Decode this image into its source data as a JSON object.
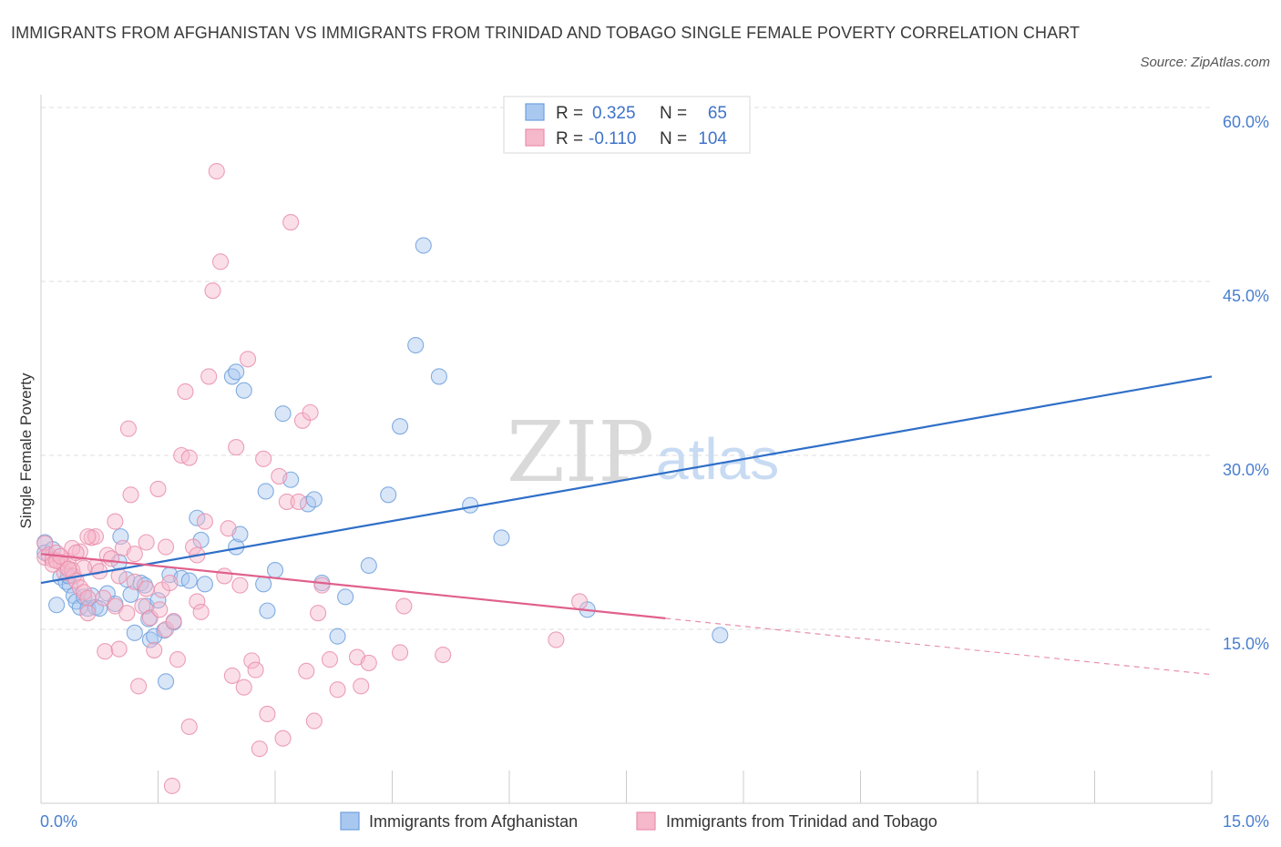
{
  "title": "IMMIGRANTS FROM AFGHANISTAN VS IMMIGRANTS FROM TRINIDAD AND TOBAGO SINGLE FEMALE POVERTY CORRELATION CHART",
  "source": "Source: ZipAtlas.com",
  "watermark": {
    "zip": "ZIP",
    "atlas": "atlas"
  },
  "colors": {
    "blue_fill": "#a9c8f0",
    "blue_stroke": "#6f9fdc",
    "blue_line": "#2f6fc8",
    "pink_fill": "#f6b8cb",
    "pink_stroke": "#e98fac",
    "pink_line": "#e0608c",
    "axis_text": "#4a7fd0",
    "grid": "#dedede"
  },
  "legend": {
    "r_label": "R =",
    "n_label": "N =",
    "rows": [
      {
        "r": "0.325",
        "n": "65"
      },
      {
        "r": "-0.110",
        "n": "104"
      }
    ]
  },
  "chart_data": {
    "type": "scatter",
    "xlabel": "",
    "ylabel": "Single Female Poverty",
    "xlim": [
      0,
      15
    ],
    "ylim": [
      0,
      60
    ],
    "x_tick_labels": [
      "0.0%",
      "15.0%"
    ],
    "y_ticks": [
      15,
      30,
      45,
      60
    ],
    "y_tick_labels": [
      "15.0%",
      "30.0%",
      "45.0%",
      "60.0%"
    ],
    "grid": true,
    "legend_placement": "top-center",
    "series": [
      {
        "name": "Immigrants from Afghanistan",
        "color": "#a9c8f0",
        "trend": {
          "x": [
            0,
            15
          ],
          "y": [
            19.0,
            36.8
          ],
          "dashed_from": null
        },
        "points": [
          [
            0.05,
            22.5
          ],
          [
            0.05,
            21.6
          ],
          [
            0.2,
            17.1
          ],
          [
            0.25,
            19.5
          ],
          [
            0.32,
            19.1
          ],
          [
            0.37,
            18.8
          ],
          [
            0.42,
            17.9
          ],
          [
            0.45,
            17.4
          ],
          [
            0.5,
            16.9
          ],
          [
            0.55,
            17.8
          ],
          [
            0.6,
            16.8
          ],
          [
            0.65,
            17.9
          ],
          [
            0.7,
            16.9
          ],
          [
            0.75,
            16.8
          ],
          [
            0.85,
            18.1
          ],
          [
            0.95,
            17.2
          ],
          [
            1.0,
            20.8
          ],
          [
            1.02,
            23.0
          ],
          [
            1.1,
            19.3
          ],
          [
            1.15,
            18.0
          ],
          [
            1.2,
            14.7
          ],
          [
            1.28,
            19.0
          ],
          [
            1.33,
            18.8
          ],
          [
            1.35,
            17.0
          ],
          [
            1.38,
            15.9
          ],
          [
            1.4,
            14.1
          ],
          [
            1.45,
            14.4
          ],
          [
            1.5,
            17.5
          ],
          [
            1.58,
            14.9
          ],
          [
            1.6,
            10.5
          ],
          [
            1.65,
            19.7
          ],
          [
            1.7,
            15.6
          ],
          [
            1.8,
            19.4
          ],
          [
            1.9,
            19.2
          ],
          [
            2.0,
            24.6
          ],
          [
            2.05,
            22.7
          ],
          [
            2.1,
            18.9
          ],
          [
            2.45,
            36.8
          ],
          [
            2.5,
            37.2
          ],
          [
            2.5,
            22.1
          ],
          [
            2.55,
            23.2
          ],
          [
            2.6,
            35.6
          ],
          [
            2.85,
            18.9
          ],
          [
            2.88,
            26.9
          ],
          [
            2.9,
            16.6
          ],
          [
            3.0,
            20.1
          ],
          [
            3.1,
            33.6
          ],
          [
            3.2,
            27.9
          ],
          [
            3.42,
            25.8
          ],
          [
            3.5,
            26.2
          ],
          [
            3.6,
            19.0
          ],
          [
            3.8,
            14.4
          ],
          [
            3.9,
            17.8
          ],
          [
            4.2,
            20.5
          ],
          [
            4.45,
            26.6
          ],
          [
            4.6,
            32.5
          ],
          [
            4.8,
            39.5
          ],
          [
            4.9,
            48.1
          ],
          [
            5.1,
            36.8
          ],
          [
            5.5,
            25.7
          ],
          [
            5.9,
            22.9
          ],
          [
            7.0,
            16.7
          ],
          [
            8.7,
            14.5
          ],
          [
            0.15,
            21.9
          ],
          [
            0.35,
            19.6
          ]
        ]
      },
      {
        "name": "Immigrants from Trinidad and Tobago",
        "color": "#f6b8cb",
        "trend": {
          "x": [
            0,
            15
          ],
          "y": [
            21.5,
            11.1
          ],
          "dashed_from": 8.0
        },
        "points": [
          [
            0.05,
            22.4
          ],
          [
            0.05,
            21.2
          ],
          [
            0.1,
            21.4
          ],
          [
            0.15,
            21.0
          ],
          [
            0.2,
            21.6
          ],
          [
            0.25,
            20.8
          ],
          [
            0.3,
            20.5
          ],
          [
            0.3,
            19.9
          ],
          [
            0.35,
            20.9
          ],
          [
            0.4,
            20.1
          ],
          [
            0.42,
            19.6
          ],
          [
            0.45,
            19.2
          ],
          [
            0.5,
            21.7
          ],
          [
            0.5,
            18.6
          ],
          [
            0.55,
            18.2
          ],
          [
            0.6,
            17.7
          ],
          [
            0.6,
            16.4
          ],
          [
            0.65,
            22.9
          ],
          [
            0.7,
            23.0
          ],
          [
            0.7,
            20.4
          ],
          [
            0.75,
            20.0
          ],
          [
            0.8,
            17.7
          ],
          [
            0.82,
            13.1
          ],
          [
            0.85,
            21.4
          ],
          [
            0.9,
            21.1
          ],
          [
            0.95,
            24.3
          ],
          [
            0.95,
            17.0
          ],
          [
            1.0,
            19.6
          ],
          [
            1.05,
            22.0
          ],
          [
            1.1,
            16.4
          ],
          [
            1.12,
            32.3
          ],
          [
            1.15,
            26.6
          ],
          [
            1.2,
            21.5
          ],
          [
            1.2,
            19.1
          ],
          [
            1.25,
            10.1
          ],
          [
            1.3,
            17.0
          ],
          [
            1.35,
            22.5
          ],
          [
            1.35,
            18.5
          ],
          [
            1.4,
            16.0
          ],
          [
            1.45,
            13.2
          ],
          [
            1.5,
            27.1
          ],
          [
            1.52,
            16.7
          ],
          [
            1.55,
            18.4
          ],
          [
            1.6,
            22.1
          ],
          [
            1.6,
            15.0
          ],
          [
            1.65,
            19.0
          ],
          [
            1.7,
            15.7
          ],
          [
            1.75,
            12.4
          ],
          [
            1.8,
            30.0
          ],
          [
            1.85,
            35.5
          ],
          [
            1.9,
            29.8
          ],
          [
            1.9,
            6.6
          ],
          [
            1.95,
            22.1
          ],
          [
            2.0,
            21.4
          ],
          [
            2.0,
            17.4
          ],
          [
            2.05,
            16.5
          ],
          [
            2.1,
            24.3
          ],
          [
            2.15,
            36.8
          ],
          [
            2.2,
            44.2
          ],
          [
            2.25,
            54.5
          ],
          [
            2.3,
            46.7
          ],
          [
            2.35,
            19.6
          ],
          [
            2.4,
            23.7
          ],
          [
            2.45,
            11.0
          ],
          [
            2.5,
            30.7
          ],
          [
            2.55,
            18.8
          ],
          [
            2.6,
            10.0
          ],
          [
            2.65,
            38.3
          ],
          [
            2.7,
            12.3
          ],
          [
            2.75,
            11.5
          ],
          [
            2.8,
            4.7
          ],
          [
            2.85,
            29.7
          ],
          [
            2.9,
            7.7
          ],
          [
            3.05,
            28.2
          ],
          [
            3.1,
            5.6
          ],
          [
            3.15,
            26.0
          ],
          [
            3.2,
            50.1
          ],
          [
            3.3,
            26.0
          ],
          [
            3.35,
            33.0
          ],
          [
            3.4,
            11.4
          ],
          [
            3.45,
            33.7
          ],
          [
            3.5,
            7.1
          ],
          [
            3.55,
            16.4
          ],
          [
            3.6,
            18.8
          ],
          [
            3.7,
            12.4
          ],
          [
            3.8,
            9.8
          ],
          [
            4.05,
            12.6
          ],
          [
            4.1,
            10.1
          ],
          [
            4.2,
            12.1
          ],
          [
            4.6,
            13.0
          ],
          [
            4.65,
            17.0
          ],
          [
            5.15,
            12.8
          ],
          [
            6.6,
            14.1
          ],
          [
            6.9,
            17.4
          ],
          [
            1.0,
            13.3
          ],
          [
            1.68,
            1.5
          ],
          [
            0.6,
            23.0
          ],
          [
            0.4,
            22.0
          ],
          [
            0.15,
            20.6
          ],
          [
            0.2,
            20.9
          ],
          [
            0.25,
            21.3
          ],
          [
            0.55,
            20.3
          ],
          [
            0.45,
            21.6
          ],
          [
            0.35,
            20.2
          ]
        ]
      }
    ]
  }
}
